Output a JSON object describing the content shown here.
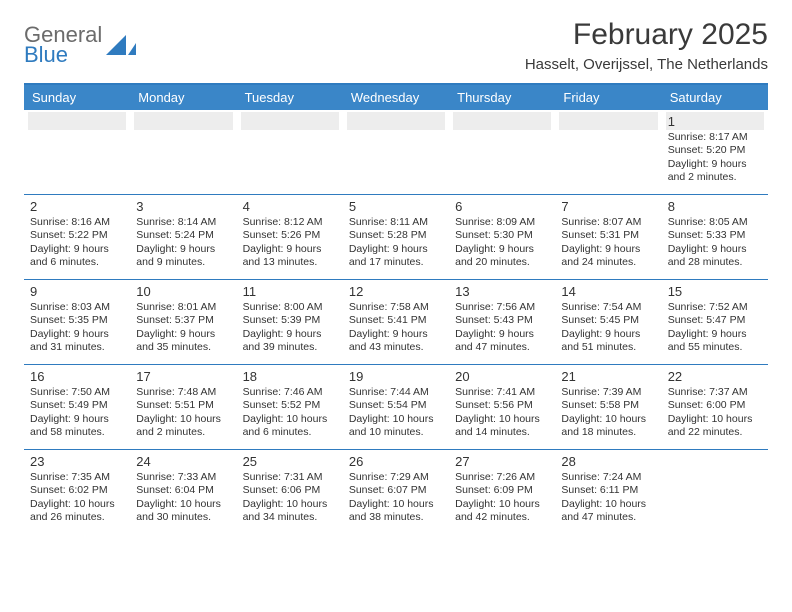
{
  "brand": {
    "name_top": "General",
    "name_bottom": "Blue",
    "shape_color": "#2f7bbf"
  },
  "title": "February 2025",
  "subtitle": "Hasselt, Overijssel, The Netherlands",
  "colors": {
    "header_bg": "#3a86c8",
    "header_text": "#ffffff",
    "rule": "#2f7bbf",
    "shade": "#ededed",
    "text": "#333333"
  },
  "day_headers": [
    "Sunday",
    "Monday",
    "Tuesday",
    "Wednesday",
    "Thursday",
    "Friday",
    "Saturday"
  ],
  "weeks": [
    [
      {
        "n": "",
        "sunrise": "",
        "sunset": "",
        "daylight": ""
      },
      {
        "n": "",
        "sunrise": "",
        "sunset": "",
        "daylight": ""
      },
      {
        "n": "",
        "sunrise": "",
        "sunset": "",
        "daylight": ""
      },
      {
        "n": "",
        "sunrise": "",
        "sunset": "",
        "daylight": ""
      },
      {
        "n": "",
        "sunrise": "",
        "sunset": "",
        "daylight": ""
      },
      {
        "n": "",
        "sunrise": "",
        "sunset": "",
        "daylight": ""
      },
      {
        "n": "1",
        "sunrise": "Sunrise: 8:17 AM",
        "sunset": "Sunset: 5:20 PM",
        "daylight": "Daylight: 9 hours and 2 minutes."
      }
    ],
    [
      {
        "n": "2",
        "sunrise": "Sunrise: 8:16 AM",
        "sunset": "Sunset: 5:22 PM",
        "daylight": "Daylight: 9 hours and 6 minutes."
      },
      {
        "n": "3",
        "sunrise": "Sunrise: 8:14 AM",
        "sunset": "Sunset: 5:24 PM",
        "daylight": "Daylight: 9 hours and 9 minutes."
      },
      {
        "n": "4",
        "sunrise": "Sunrise: 8:12 AM",
        "sunset": "Sunset: 5:26 PM",
        "daylight": "Daylight: 9 hours and 13 minutes."
      },
      {
        "n": "5",
        "sunrise": "Sunrise: 8:11 AM",
        "sunset": "Sunset: 5:28 PM",
        "daylight": "Daylight: 9 hours and 17 minutes."
      },
      {
        "n": "6",
        "sunrise": "Sunrise: 8:09 AM",
        "sunset": "Sunset: 5:30 PM",
        "daylight": "Daylight: 9 hours and 20 minutes."
      },
      {
        "n": "7",
        "sunrise": "Sunrise: 8:07 AM",
        "sunset": "Sunset: 5:31 PM",
        "daylight": "Daylight: 9 hours and 24 minutes."
      },
      {
        "n": "8",
        "sunrise": "Sunrise: 8:05 AM",
        "sunset": "Sunset: 5:33 PM",
        "daylight": "Daylight: 9 hours and 28 minutes."
      }
    ],
    [
      {
        "n": "9",
        "sunrise": "Sunrise: 8:03 AM",
        "sunset": "Sunset: 5:35 PM",
        "daylight": "Daylight: 9 hours and 31 minutes."
      },
      {
        "n": "10",
        "sunrise": "Sunrise: 8:01 AM",
        "sunset": "Sunset: 5:37 PM",
        "daylight": "Daylight: 9 hours and 35 minutes."
      },
      {
        "n": "11",
        "sunrise": "Sunrise: 8:00 AM",
        "sunset": "Sunset: 5:39 PM",
        "daylight": "Daylight: 9 hours and 39 minutes."
      },
      {
        "n": "12",
        "sunrise": "Sunrise: 7:58 AM",
        "sunset": "Sunset: 5:41 PM",
        "daylight": "Daylight: 9 hours and 43 minutes."
      },
      {
        "n": "13",
        "sunrise": "Sunrise: 7:56 AM",
        "sunset": "Sunset: 5:43 PM",
        "daylight": "Daylight: 9 hours and 47 minutes."
      },
      {
        "n": "14",
        "sunrise": "Sunrise: 7:54 AM",
        "sunset": "Sunset: 5:45 PM",
        "daylight": "Daylight: 9 hours and 51 minutes."
      },
      {
        "n": "15",
        "sunrise": "Sunrise: 7:52 AM",
        "sunset": "Sunset: 5:47 PM",
        "daylight": "Daylight: 9 hours and 55 minutes."
      }
    ],
    [
      {
        "n": "16",
        "sunrise": "Sunrise: 7:50 AM",
        "sunset": "Sunset: 5:49 PM",
        "daylight": "Daylight: 9 hours and 58 minutes."
      },
      {
        "n": "17",
        "sunrise": "Sunrise: 7:48 AM",
        "sunset": "Sunset: 5:51 PM",
        "daylight": "Daylight: 10 hours and 2 minutes."
      },
      {
        "n": "18",
        "sunrise": "Sunrise: 7:46 AM",
        "sunset": "Sunset: 5:52 PM",
        "daylight": "Daylight: 10 hours and 6 minutes."
      },
      {
        "n": "19",
        "sunrise": "Sunrise: 7:44 AM",
        "sunset": "Sunset: 5:54 PM",
        "daylight": "Daylight: 10 hours and 10 minutes."
      },
      {
        "n": "20",
        "sunrise": "Sunrise: 7:41 AM",
        "sunset": "Sunset: 5:56 PM",
        "daylight": "Daylight: 10 hours and 14 minutes."
      },
      {
        "n": "21",
        "sunrise": "Sunrise: 7:39 AM",
        "sunset": "Sunset: 5:58 PM",
        "daylight": "Daylight: 10 hours and 18 minutes."
      },
      {
        "n": "22",
        "sunrise": "Sunrise: 7:37 AM",
        "sunset": "Sunset: 6:00 PM",
        "daylight": "Daylight: 10 hours and 22 minutes."
      }
    ],
    [
      {
        "n": "23",
        "sunrise": "Sunrise: 7:35 AM",
        "sunset": "Sunset: 6:02 PM",
        "daylight": "Daylight: 10 hours and 26 minutes."
      },
      {
        "n": "24",
        "sunrise": "Sunrise: 7:33 AM",
        "sunset": "Sunset: 6:04 PM",
        "daylight": "Daylight: 10 hours and 30 minutes."
      },
      {
        "n": "25",
        "sunrise": "Sunrise: 7:31 AM",
        "sunset": "Sunset: 6:06 PM",
        "daylight": "Daylight: 10 hours and 34 minutes."
      },
      {
        "n": "26",
        "sunrise": "Sunrise: 7:29 AM",
        "sunset": "Sunset: 6:07 PM",
        "daylight": "Daylight: 10 hours and 38 minutes."
      },
      {
        "n": "27",
        "sunrise": "Sunrise: 7:26 AM",
        "sunset": "Sunset: 6:09 PM",
        "daylight": "Daylight: 10 hours and 42 minutes."
      },
      {
        "n": "28",
        "sunrise": "Sunrise: 7:24 AM",
        "sunset": "Sunset: 6:11 PM",
        "daylight": "Daylight: 10 hours and 47 minutes."
      },
      {
        "n": "",
        "sunrise": "",
        "sunset": "",
        "daylight": ""
      }
    ]
  ]
}
